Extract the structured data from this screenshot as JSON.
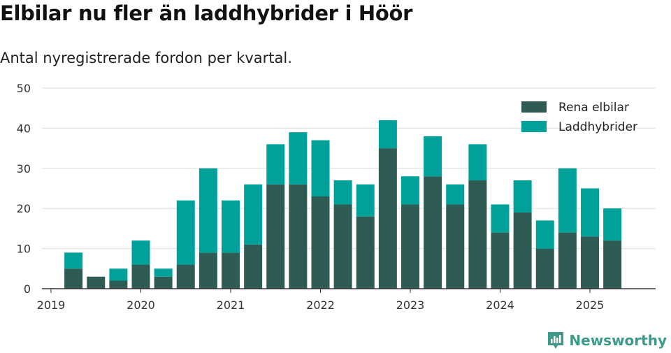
{
  "title": "Elbilar nu fler än laddhybrider i Höör",
  "subtitle": "Antal nyregistrerade fordon per kvartal.",
  "brand": {
    "name": "Newsworthy",
    "icon": "newsworthy-logo-icon",
    "color": "#3d9a8b"
  },
  "colors": {
    "elbilar": "#2e5c55",
    "laddhybrider": "#00a19a",
    "grid": "#dddddd",
    "axis": "#333333"
  },
  "chart_data": {
    "type": "bar",
    "stacked": true,
    "title": "Elbilar nu fler än laddhybrider i Höör",
    "subtitle": "Antal nyregistrerade fordon per kvartal.",
    "xlabel": "",
    "ylabel": "",
    "ylim": [
      0,
      50
    ],
    "yticks": [
      0,
      10,
      20,
      30,
      40,
      50
    ],
    "xticks": [
      "2019",
      "2020",
      "2021",
      "2022",
      "2023",
      "2024",
      "2025"
    ],
    "grid": true,
    "legend_position": "top-right",
    "categories": [
      "2019 Q2",
      "2019 Q3",
      "2019 Q4",
      "2020 Q1",
      "2020 Q2",
      "2020 Q3",
      "2020 Q4",
      "2021 Q1",
      "2021 Q2",
      "2021 Q3",
      "2021 Q4",
      "2022 Q1",
      "2022 Q2",
      "2022 Q3",
      "2022 Q4",
      "2023 Q1",
      "2023 Q2",
      "2023 Q3",
      "2023 Q4",
      "2024 Q1",
      "2024 Q2",
      "2024 Q3",
      "2024 Q4",
      "2025 Q1",
      "2025 Q2"
    ],
    "series": [
      {
        "name": "Rena elbilar",
        "color": "#2e5c55",
        "values": [
          5,
          3,
          2,
          6,
          3,
          6,
          9,
          9,
          11,
          26,
          26,
          23,
          21,
          18,
          35,
          21,
          28,
          21,
          27,
          14,
          19,
          10,
          14,
          13,
          12
        ]
      },
      {
        "name": "Laddhybrider",
        "color": "#00a19a",
        "values": [
          4,
          0,
          3,
          6,
          2,
          16,
          21,
          13,
          15,
          10,
          13,
          14,
          6,
          8,
          7,
          7,
          10,
          5,
          9,
          7,
          8,
          7,
          16,
          12,
          8
        ]
      }
    ]
  }
}
